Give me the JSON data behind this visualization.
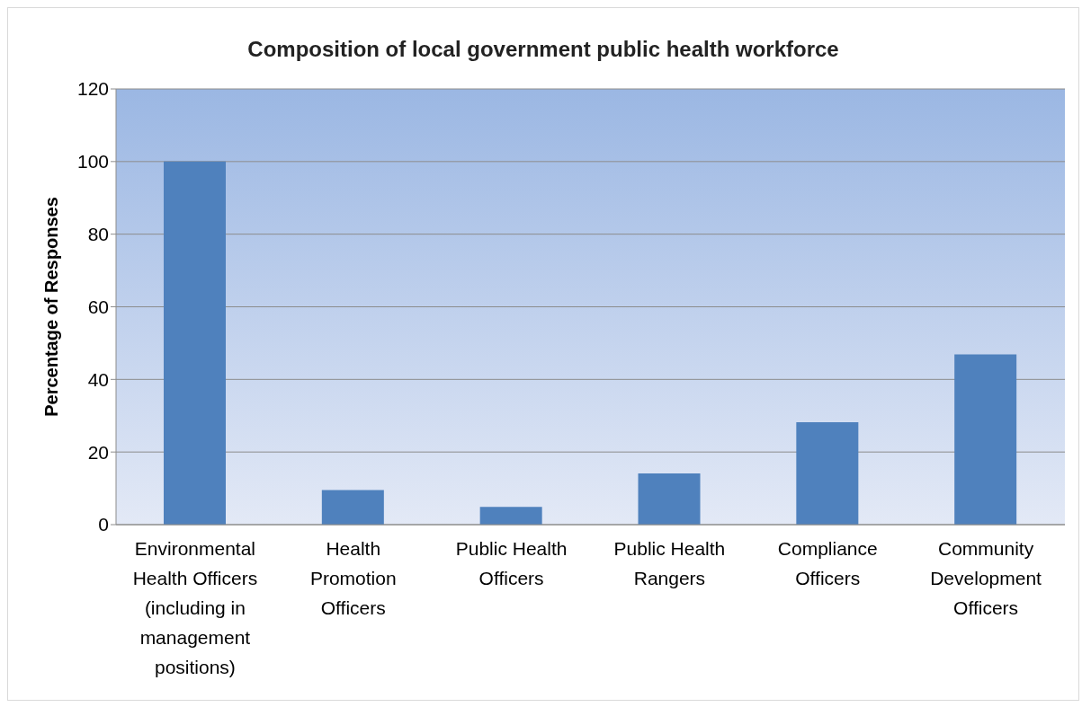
{
  "chart_data": {
    "type": "bar",
    "title": "Composition of local government public health workforce",
    "ylabel": "Percentage of Responses",
    "categories": [
      "Environmental Health Officers (including in management positions)",
      "Health Promotion Officers",
      "Public Health Officers",
      "Public Health Rangers",
      "Compliance Officers",
      "Community Development Officers"
    ],
    "values": [
      100,
      9.5,
      4.9,
      14.1,
      28.2,
      46.9
    ],
    "color": "#4f81bd",
    "ylim": [
      0,
      120
    ],
    "yticks": [
      0,
      20,
      40,
      60,
      80,
      100,
      120
    ],
    "grid": "y"
  }
}
